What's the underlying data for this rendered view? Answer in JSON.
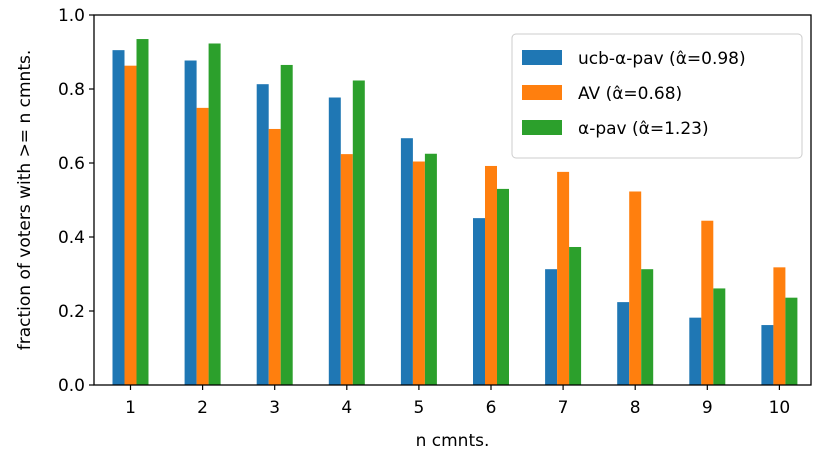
{
  "chart_data": {
    "type": "bar",
    "categories": [
      "1",
      "2",
      "3",
      "4",
      "5",
      "6",
      "7",
      "8",
      "9",
      "10"
    ],
    "series": [
      {
        "name": "ucb-α-pav (α̂=0.98)",
        "color": "#1f77b4",
        "values": [
          0.905,
          0.877,
          0.813,
          0.777,
          0.667,
          0.451,
          0.313,
          0.224,
          0.182,
          0.162
        ]
      },
      {
        "name": "AV (α̂=0.68)",
        "color": "#ff7f0e",
        "values": [
          0.863,
          0.749,
          0.692,
          0.624,
          0.604,
          0.592,
          0.576,
          0.523,
          0.444,
          0.318
        ]
      },
      {
        "name": "α-pav (α̂=1.23)",
        "color": "#2ca02c",
        "values": [
          0.935,
          0.923,
          0.865,
          0.823,
          0.625,
          0.53,
          0.373,
          0.313,
          0.261,
          0.236
        ]
      }
    ],
    "title": "",
    "xlabel": "n cmnts.",
    "ylabel": "fraction of voters with >= n cmnts.",
    "ylim": [
      0,
      1.0
    ],
    "yticks": [
      "0.0",
      "0.2",
      "0.4",
      "0.6",
      "0.8",
      "1.0"
    ],
    "grid": false,
    "legend_position": "top-right"
  }
}
